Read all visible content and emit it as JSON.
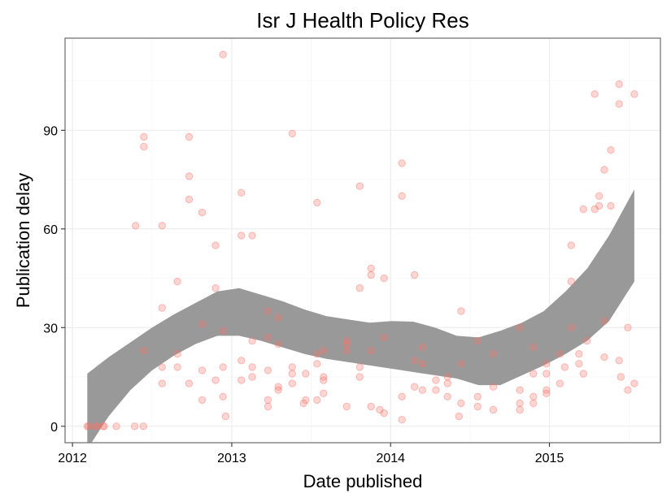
{
  "chart_data": {
    "type": "scatter",
    "title": "Isr J Health Policy Res",
    "xlabel": "Date published",
    "ylabel": "Publication delay",
    "xlim": [
      "2011-12-15",
      "2015-09-13"
    ],
    "ylim": [
      -5,
      118
    ],
    "x_ticks": [
      {
        "value": "2012-01-01",
        "label": "2012"
      },
      {
        "value": "2013-01-01",
        "label": "2013"
      },
      {
        "value": "2014-01-01",
        "label": "2014"
      },
      {
        "value": "2015-01-01",
        "label": "2015"
      }
    ],
    "y_ticks": [
      0,
      30,
      60,
      90
    ],
    "grid": true,
    "point_color": "#f8766d",
    "point_alpha": 0.3,
    "band_color": "#999999",
    "points": [
      {
        "x": "2012-02-04",
        "y": 0
      },
      {
        "x": "2012-02-07",
        "y": 0
      },
      {
        "x": "2012-02-23",
        "y": 0
      },
      {
        "x": "2012-02-26",
        "y": 0
      },
      {
        "x": "2012-03-11",
        "y": 0
      },
      {
        "x": "2012-03-14",
        "y": 0
      },
      {
        "x": "2012-04-11",
        "y": 0
      },
      {
        "x": "2012-05-23",
        "y": 0
      },
      {
        "x": "2012-06-12",
        "y": 0
      },
      {
        "x": "2012-05-25",
        "y": 61
      },
      {
        "x": "2012-06-13",
        "y": 88
      },
      {
        "x": "2012-06-13",
        "y": 85
      },
      {
        "x": "2012-06-13",
        "y": 23
      },
      {
        "x": "2012-07-25",
        "y": 61
      },
      {
        "x": "2012-07-25",
        "y": 36
      },
      {
        "x": "2012-07-25",
        "y": 18
      },
      {
        "x": "2012-07-25",
        "y": 13
      },
      {
        "x": "2012-08-29",
        "y": 44
      },
      {
        "x": "2012-08-29",
        "y": 22
      },
      {
        "x": "2012-08-29",
        "y": 18
      },
      {
        "x": "2012-09-25",
        "y": 88
      },
      {
        "x": "2012-09-25",
        "y": 76
      },
      {
        "x": "2012-09-25",
        "y": 69
      },
      {
        "x": "2012-09-25",
        "y": 13
      },
      {
        "x": "2012-10-25",
        "y": 65
      },
      {
        "x": "2012-10-25",
        "y": 31
      },
      {
        "x": "2012-10-25",
        "y": 17
      },
      {
        "x": "2012-10-25",
        "y": 8
      },
      {
        "x": "2012-11-25",
        "y": 55
      },
      {
        "x": "2012-11-25",
        "y": 42
      },
      {
        "x": "2012-11-25",
        "y": 14
      },
      {
        "x": "2012-12-12",
        "y": 113
      },
      {
        "x": "2012-12-12",
        "y": 29
      },
      {
        "x": "2012-12-12",
        "y": 18
      },
      {
        "x": "2012-12-12",
        "y": 9
      },
      {
        "x": "2012-12-18",
        "y": 3
      },
      {
        "x": "2013-01-23",
        "y": 71
      },
      {
        "x": "2013-01-23",
        "y": 58
      },
      {
        "x": "2013-01-23",
        "y": 20
      },
      {
        "x": "2013-01-23",
        "y": 14
      },
      {
        "x": "2013-02-17",
        "y": 58
      },
      {
        "x": "2013-02-17",
        "y": 26
      },
      {
        "x": "2013-02-17",
        "y": 18
      },
      {
        "x": "2013-02-17",
        "y": 15
      },
      {
        "x": "2013-03-25",
        "y": 35
      },
      {
        "x": "2013-03-25",
        "y": 27
      },
      {
        "x": "2013-03-25",
        "y": 17
      },
      {
        "x": "2013-03-25",
        "y": 8
      },
      {
        "x": "2013-03-25",
        "y": 6
      },
      {
        "x": "2013-04-18",
        "y": 33
      },
      {
        "x": "2013-04-18",
        "y": 25
      },
      {
        "x": "2013-04-18",
        "y": 12
      },
      {
        "x": "2013-04-18",
        "y": 11
      },
      {
        "x": "2013-05-20",
        "y": 89
      },
      {
        "x": "2013-05-20",
        "y": 18
      },
      {
        "x": "2013-05-20",
        "y": 16
      },
      {
        "x": "2013-05-20",
        "y": 13
      },
      {
        "x": "2013-06-15",
        "y": 7
      },
      {
        "x": "2013-06-20",
        "y": 16
      },
      {
        "x": "2013-06-20",
        "y": 8
      },
      {
        "x": "2013-07-16",
        "y": 68
      },
      {
        "x": "2013-07-16",
        "y": 22
      },
      {
        "x": "2013-07-16",
        "y": 19
      },
      {
        "x": "2013-07-16",
        "y": 8
      },
      {
        "x": "2013-07-31",
        "y": 23
      },
      {
        "x": "2013-07-31",
        "y": 15
      },
      {
        "x": "2013-07-31",
        "y": 14
      },
      {
        "x": "2013-07-31",
        "y": 10
      },
      {
        "x": "2013-09-22",
        "y": 26
      },
      {
        "x": "2013-09-22",
        "y": 25
      },
      {
        "x": "2013-09-22",
        "y": 23
      },
      {
        "x": "2013-09-22",
        "y": 6
      },
      {
        "x": "2013-10-22",
        "y": 73
      },
      {
        "x": "2013-10-22",
        "y": 42
      },
      {
        "x": "2013-10-22",
        "y": 18
      },
      {
        "x": "2013-10-22",
        "y": 15
      },
      {
        "x": "2013-11-17",
        "y": 48
      },
      {
        "x": "2013-11-17",
        "y": 46
      },
      {
        "x": "2013-11-17",
        "y": 23
      },
      {
        "x": "2013-11-17",
        "y": 6
      },
      {
        "x": "2013-12-17",
        "y": 45
      },
      {
        "x": "2013-12-17",
        "y": 27
      },
      {
        "x": "2013-12-07",
        "y": 5
      },
      {
        "x": "2013-12-17",
        "y": 4
      },
      {
        "x": "2014-01-27",
        "y": 80
      },
      {
        "x": "2014-01-27",
        "y": 70
      },
      {
        "x": "2014-01-27",
        "y": 9
      },
      {
        "x": "2014-01-27",
        "y": 2
      },
      {
        "x": "2014-02-25",
        "y": 46
      },
      {
        "x": "2014-02-25",
        "y": 20
      },
      {
        "x": "2014-02-25",
        "y": 12
      },
      {
        "x": "2014-03-15",
        "y": 24
      },
      {
        "x": "2014-03-15",
        "y": 19
      },
      {
        "x": "2014-03-15",
        "y": 11
      },
      {
        "x": "2014-04-15",
        "y": 14
      },
      {
        "x": "2014-04-15",
        "y": 11
      },
      {
        "x": "2014-05-12",
        "y": 15
      },
      {
        "x": "2014-05-12",
        "y": 13
      },
      {
        "x": "2014-05-12",
        "y": 9
      },
      {
        "x": "2014-06-12",
        "y": 35
      },
      {
        "x": "2014-06-12",
        "y": 19
      },
      {
        "x": "2014-06-12",
        "y": 7
      },
      {
        "x": "2014-06-07",
        "y": 3
      },
      {
        "x": "2014-07-20",
        "y": 26
      },
      {
        "x": "2014-07-20",
        "y": 9
      },
      {
        "x": "2014-07-20",
        "y": 6
      },
      {
        "x": "2014-08-25",
        "y": 22
      },
      {
        "x": "2014-08-25",
        "y": 12
      },
      {
        "x": "2014-08-25",
        "y": 5
      },
      {
        "x": "2014-10-25",
        "y": 30
      },
      {
        "x": "2014-10-25",
        "y": 11
      },
      {
        "x": "2014-10-25",
        "y": 7
      },
      {
        "x": "2014-10-25",
        "y": 5
      },
      {
        "x": "2014-11-25",
        "y": 24
      },
      {
        "x": "2014-11-25",
        "y": 16
      },
      {
        "x": "2014-11-25",
        "y": 9
      },
      {
        "x": "2014-11-25",
        "y": 7
      },
      {
        "x": "2014-12-25",
        "y": 19
      },
      {
        "x": "2014-12-25",
        "y": 16
      },
      {
        "x": "2014-12-25",
        "y": 11
      },
      {
        "x": "2014-12-25",
        "y": 10
      },
      {
        "x": "2015-01-25",
        "y": 22
      },
      {
        "x": "2015-01-25",
        "y": 13
      },
      {
        "x": "2015-02-05",
        "y": 18
      },
      {
        "x": "2015-02-20",
        "y": 55
      },
      {
        "x": "2015-02-20",
        "y": 44
      },
      {
        "x": "2015-02-20",
        "y": 30
      },
      {
        "x": "2015-03-10",
        "y": 22
      },
      {
        "x": "2015-03-10",
        "y": 19
      },
      {
        "x": "2015-03-20",
        "y": 66
      },
      {
        "x": "2015-03-20",
        "y": 16
      },
      {
        "x": "2015-03-28",
        "y": 26
      },
      {
        "x": "2015-04-15",
        "y": 101
      },
      {
        "x": "2015-04-15",
        "y": 66
      },
      {
        "x": "2015-04-25",
        "y": 70
      },
      {
        "x": "2015-04-25",
        "y": 67
      },
      {
        "x": "2015-05-07",
        "y": 78
      },
      {
        "x": "2015-05-07",
        "y": 32
      },
      {
        "x": "2015-05-07",
        "y": 21
      },
      {
        "x": "2015-05-22",
        "y": 84
      },
      {
        "x": "2015-05-22",
        "y": 67
      },
      {
        "x": "2015-06-10",
        "y": 104
      },
      {
        "x": "2015-06-10",
        "y": 98
      },
      {
        "x": "2015-06-10",
        "y": 20
      },
      {
        "x": "2015-06-14",
        "y": 15
      },
      {
        "x": "2015-06-30",
        "y": 30
      },
      {
        "x": "2015-06-30",
        "y": 11
      },
      {
        "x": "2015-07-15",
        "y": 101
      },
      {
        "x": "2015-07-15",
        "y": 13
      }
    ],
    "smooth_band": {
      "x": [
        "2012-02-04",
        "2012-03-24",
        "2012-05-13",
        "2012-07-02",
        "2012-08-21",
        "2012-10-10",
        "2012-11-29",
        "2013-01-18",
        "2013-03-09",
        "2013-04-28",
        "2013-06-17",
        "2013-08-06",
        "2013-09-25",
        "2013-11-14",
        "2014-01-03",
        "2014-02-22",
        "2014-04-13",
        "2014-06-02",
        "2014-07-22",
        "2014-09-10",
        "2014-10-30",
        "2014-12-19",
        "2015-02-07",
        "2015-03-29",
        "2015-05-18",
        "2015-07-15"
      ],
      "upper": [
        16,
        21,
        25.5,
        30,
        34,
        37.5,
        41,
        42,
        40,
        38,
        35.5,
        33.5,
        32.5,
        31.5,
        32,
        31.8,
        30,
        27.5,
        27,
        29,
        31.5,
        35,
        41,
        48,
        58,
        72
      ],
      "lower": [
        -7,
        3,
        11,
        17,
        21.5,
        25,
        27.5,
        27.5,
        26,
        24,
        22,
        20.5,
        19.5,
        18.5,
        17.5,
        16.5,
        15.5,
        14.5,
        12.5,
        12.5,
        15.5,
        18.5,
        22,
        26,
        32,
        44
      ]
    }
  }
}
